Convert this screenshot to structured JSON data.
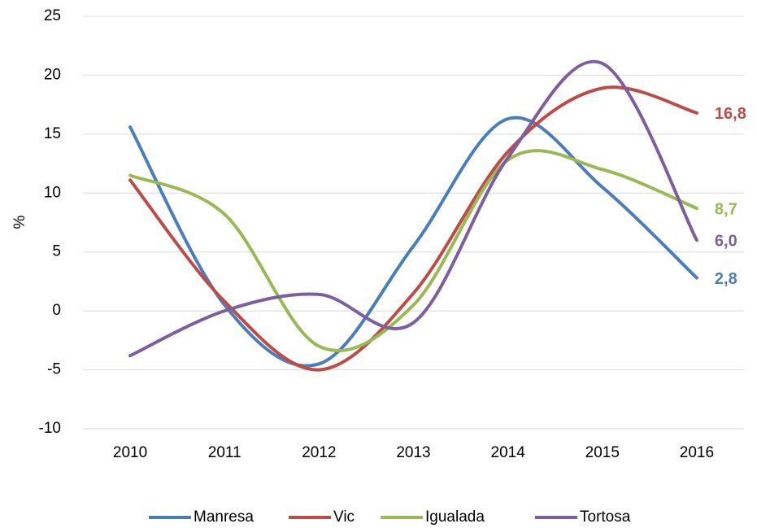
{
  "chart_data": {
    "type": "line",
    "y_label": "%",
    "categories": [
      "2010",
      "2011",
      "2012",
      "2013",
      "2014",
      "2015",
      "2016"
    ],
    "series": [
      {
        "name": "Manresa",
        "color": "#4a7ebb",
        "values": [
          15.6,
          0.5,
          -4.5,
          5.5,
          16.3,
          10.5,
          2.8
        ],
        "value_labels": [
          null,
          null,
          null,
          null,
          null,
          null,
          "2,8"
        ]
      },
      {
        "name": "Vic",
        "color": "#be4b48",
        "values": [
          11.1,
          0.8,
          -5.0,
          1.5,
          13.5,
          18.9,
          16.8
        ],
        "value_labels": [
          null,
          null,
          null,
          null,
          null,
          null,
          "16,8"
        ]
      },
      {
        "name": "Igualada",
        "color": "#98b954",
        "values": [
          11.5,
          8.2,
          -3.0,
          0.5,
          12.8,
          12.0,
          8.7
        ],
        "value_labels": [
          null,
          null,
          null,
          null,
          null,
          null,
          "8,7"
        ]
      },
      {
        "name": "Tortosa",
        "color": "#7d5fa0",
        "values": [
          -3.8,
          0.0,
          1.4,
          -1.0,
          13.0,
          21.0,
          6.0
        ],
        "value_labels": [
          null,
          null,
          null,
          null,
          null,
          null,
          "6,0"
        ]
      }
    ],
    "ylim": [
      -10,
      25
    ],
    "yticks": [
      -10,
      -5,
      0,
      5,
      10,
      15,
      20,
      25
    ],
    "grid": true,
    "smooth": true,
    "legend": "bottom"
  }
}
